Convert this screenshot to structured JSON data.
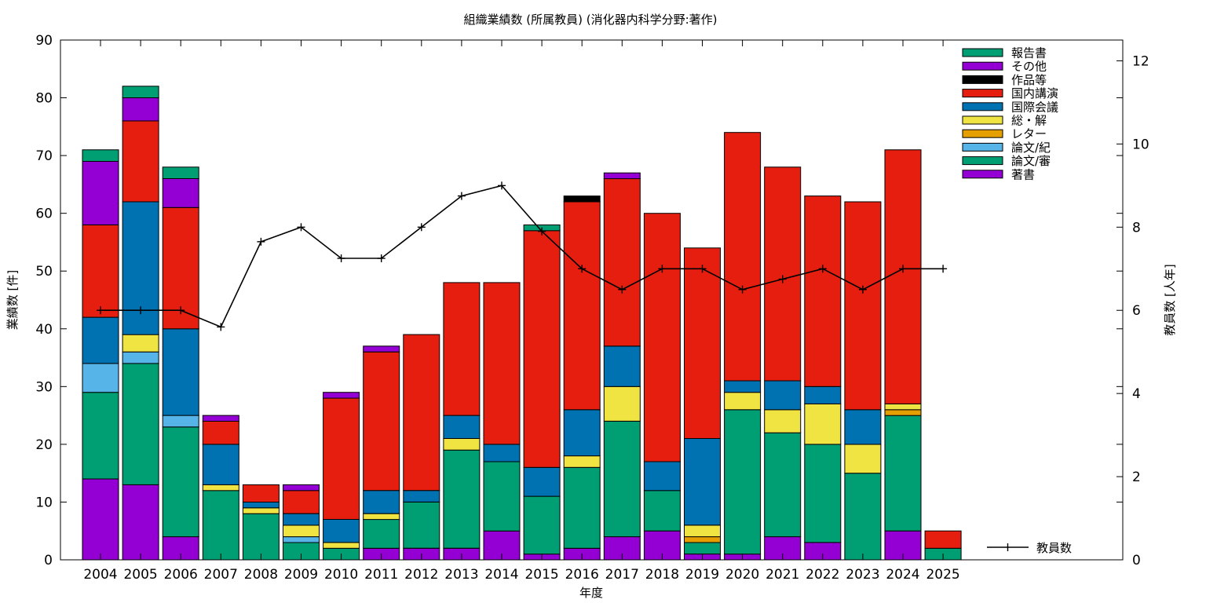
{
  "chart_data": {
    "type": "bar",
    "stacked": true,
    "title": "組織業績数 (所属教員) (消化器内科学分野:著作)",
    "xlabel": "年度",
    "ylabel": "業績数 [件]",
    "y2label": "教員数 [人年]",
    "ylim": [
      0,
      90
    ],
    "y2lim": [
      0,
      12.5
    ],
    "yticks": [
      0,
      10,
      20,
      30,
      40,
      50,
      60,
      70,
      80,
      90
    ],
    "y2ticks": [
      0,
      2,
      4,
      6,
      8,
      10,
      12
    ],
    "grid": false,
    "legend_position": "top-right",
    "categories": [
      "2004",
      "2005",
      "2006",
      "2007",
      "2008",
      "2009",
      "2010",
      "2011",
      "2012",
      "2013",
      "2014",
      "2015",
      "2016",
      "2017",
      "2018",
      "2019",
      "2020",
      "2021",
      "2022",
      "2023",
      "2024",
      "2025"
    ],
    "series": [
      {
        "name": "著書",
        "color": "#9400d3",
        "values": [
          14,
          13,
          4,
          0,
          0,
          0,
          0,
          2,
          2,
          2,
          5,
          1,
          2,
          4,
          5,
          1,
          1,
          4,
          3,
          0,
          5,
          0
        ]
      },
      {
        "name": "論文/審",
        "color": "#009e73",
        "values": [
          15,
          21,
          19,
          12,
          8,
          3,
          2,
          5,
          8,
          17,
          12,
          10,
          14,
          20,
          7,
          2,
          25,
          18,
          17,
          15,
          20,
          2
        ]
      },
      {
        "name": "論文/紀",
        "color": "#56b4e9",
        "values": [
          5,
          2,
          2,
          0,
          0,
          1,
          0,
          0,
          0,
          0,
          0,
          0,
          0,
          0,
          0,
          0,
          0,
          0,
          0,
          0,
          0,
          0
        ]
      },
      {
        "name": "レター",
        "color": "#e69f00",
        "values": [
          0,
          0,
          0,
          0,
          0,
          0,
          0,
          0,
          0,
          0,
          0,
          0,
          0,
          0,
          0,
          1,
          0,
          0,
          0,
          0,
          1,
          0
        ]
      },
      {
        "name": "総・解",
        "color": "#f0e442",
        "values": [
          0,
          3,
          0,
          1,
          1,
          2,
          1,
          1,
          0,
          2,
          0,
          0,
          2,
          6,
          0,
          2,
          3,
          4,
          7,
          5,
          1,
          0
        ]
      },
      {
        "name": "国際会議",
        "color": "#0072b2",
        "values": [
          8,
          23,
          15,
          7,
          1,
          2,
          4,
          4,
          2,
          4,
          3,
          5,
          8,
          7,
          5,
          15,
          2,
          5,
          3,
          6,
          0,
          0
        ]
      },
      {
        "name": "国内講演",
        "color": "#e51e10",
        "values": [
          16,
          14,
          21,
          4,
          3,
          4,
          21,
          24,
          27,
          23,
          28,
          41,
          36,
          29,
          43,
          33,
          43,
          37,
          33,
          36,
          44,
          3
        ]
      },
      {
        "name": "作品等",
        "color": "#000000",
        "values": [
          0,
          0,
          0,
          0,
          0,
          0,
          0,
          0,
          0,
          0,
          0,
          0,
          1,
          0,
          0,
          0,
          0,
          0,
          0,
          0,
          0,
          0
        ]
      },
      {
        "name": "その他",
        "color": "#9400d3",
        "values": [
          11,
          4,
          5,
          1,
          0,
          1,
          1,
          1,
          0,
          0,
          0,
          0,
          0,
          1,
          0,
          0,
          0,
          0,
          0,
          0,
          0,
          0
        ]
      },
      {
        "name": "報告書",
        "color": "#009e73",
        "values": [
          2,
          2,
          2,
          0,
          0,
          0,
          0,
          0,
          0,
          0,
          0,
          1,
          0,
          0,
          0,
          0,
          0,
          0,
          0,
          0,
          0,
          0
        ]
      }
    ],
    "line_series": {
      "name": "教員数",
      "color": "#000000",
      "axis": "right",
      "values": [
        6,
        6,
        6,
        5.6,
        7.65,
        8,
        7.25,
        7.25,
        8,
        8.75,
        9,
        7.9,
        7,
        6.5,
        7,
        7,
        6.5,
        6.75,
        7,
        6.5,
        7,
        7
      ]
    }
  }
}
